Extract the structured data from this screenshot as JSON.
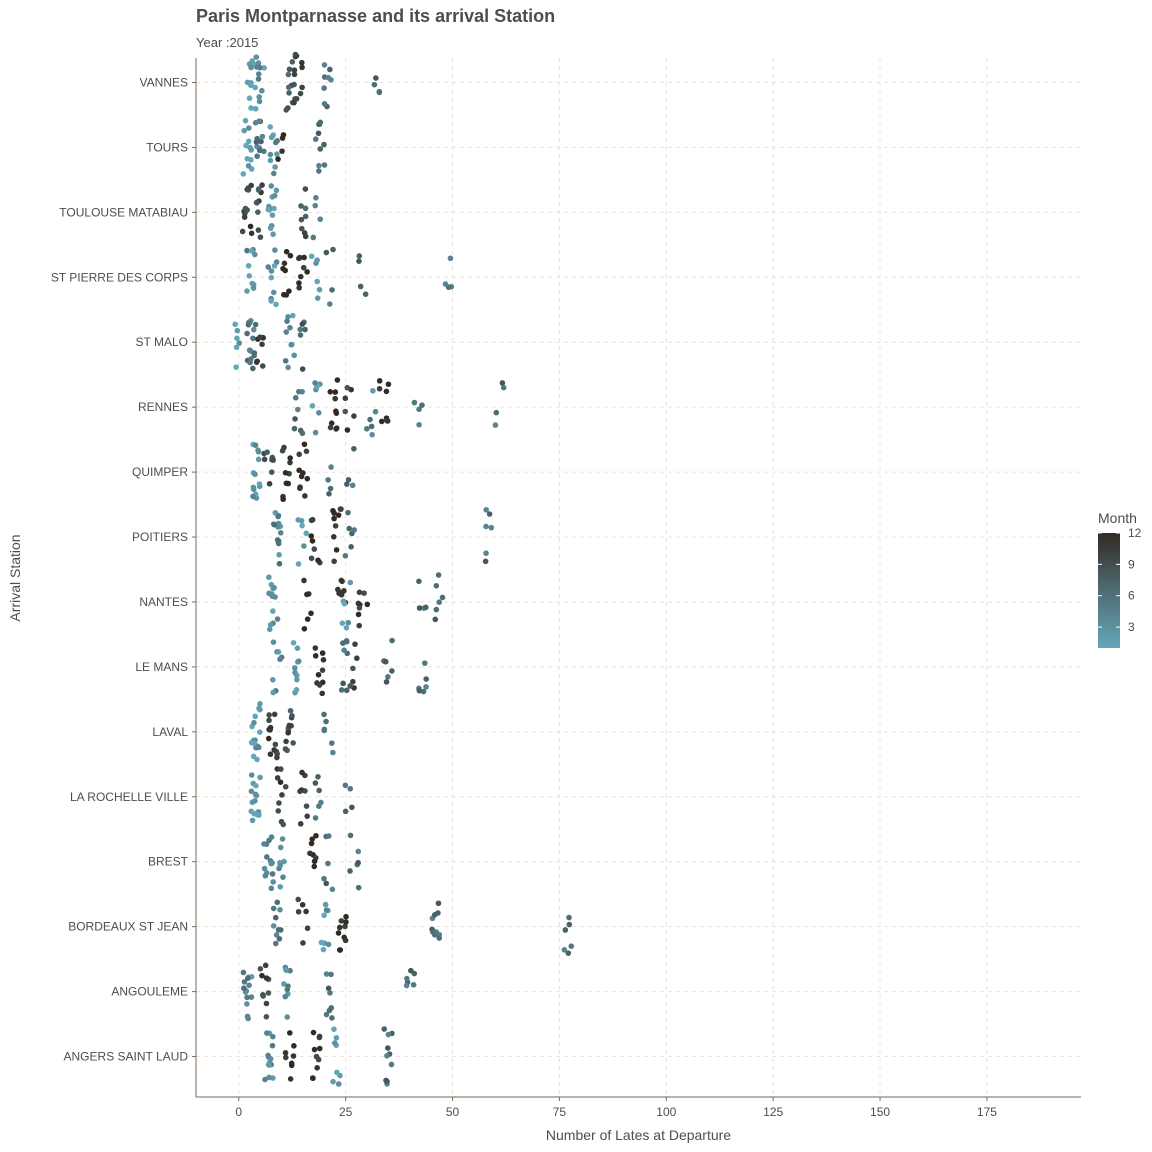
{
  "chart_data": {
    "type": "scatter",
    "title": "Paris Montparnasse and its arrival Station",
    "subtitle": "Year :2015",
    "xlabel": "Number of Lates at Departure",
    "ylabel": "Arrival Station",
    "xlim": [
      -10,
      197
    ],
    "x_ticks": [
      0,
      25,
      50,
      75,
      100,
      125,
      150,
      175
    ],
    "grid": true,
    "legend": {
      "title": "Month",
      "type": "colorbar",
      "ticks": [
        3,
        6,
        9,
        12
      ],
      "range": [
        1,
        12
      ],
      "low_color": "#64a6b9",
      "high_color": "#332a24",
      "placement": "right"
    },
    "categories": [
      "VANNES",
      "TOURS",
      "TOULOUSE MATABIAU",
      "ST PIERRE DES CORPS",
      "ST MALO",
      "RENNES",
      "QUIMPER",
      "POITIERS",
      "NANTES",
      "LE MANS",
      "LAVAL",
      "LA ROCHELLE VILLE",
      "BREST",
      "BORDEAUX ST JEAN",
      "ANGOULEME",
      "ANGERS SAINT LAUD"
    ],
    "series": [
      {
        "name": "VANNES",
        "clusters": [
          [
            3,
            1,
            12
          ],
          [
            5,
            3,
            10
          ],
          [
            12,
            8,
            10
          ],
          [
            14,
            10,
            12
          ],
          [
            21,
            6,
            8
          ],
          [
            32,
            6,
            4
          ]
        ]
      },
      {
        "name": "TOURS",
        "clusters": [
          [
            2,
            1,
            12
          ],
          [
            5,
            5,
            12
          ],
          [
            8,
            3,
            10
          ],
          [
            10,
            12,
            4
          ],
          [
            19,
            6,
            10
          ]
        ]
      },
      {
        "name": "TOULOUSE MATABIAU",
        "clusters": [
          [
            2,
            10,
            12
          ],
          [
            5,
            9,
            10
          ],
          [
            8,
            2,
            12
          ],
          [
            15,
            8,
            8
          ],
          [
            18,
            6,
            4
          ]
        ]
      },
      {
        "name": "ST PIERRE DES CORPS",
        "clusters": [
          [
            3,
            3,
            10
          ],
          [
            8,
            2,
            10
          ],
          [
            11,
            12,
            8
          ],
          [
            15,
            12,
            8
          ],
          [
            18,
            1,
            6
          ],
          [
            21,
            6,
            4
          ],
          [
            29,
            6,
            4
          ],
          [
            49,
            6,
            4
          ]
        ]
      },
      {
        "name": "ST MALO",
        "clusters": [
          [
            0,
            1,
            6
          ],
          [
            3,
            5,
            16
          ],
          [
            5,
            11,
            8
          ],
          [
            12,
            3,
            10
          ],
          [
            15,
            7,
            6
          ]
        ]
      },
      {
        "name": "RENNES",
        "clusters": [
          [
            14,
            6,
            8
          ],
          [
            18,
            2,
            8
          ],
          [
            22,
            12,
            10
          ],
          [
            26,
            10,
            6
          ],
          [
            31,
            4,
            6
          ],
          [
            34,
            12,
            8
          ],
          [
            42,
            6,
            4
          ],
          [
            61,
            6,
            4
          ]
        ]
      },
      {
        "name": "QUIMPER",
        "clusters": [
          [
            4,
            2,
            14
          ],
          [
            7,
            9,
            8
          ],
          [
            11,
            11,
            10
          ],
          [
            15,
            12,
            10
          ],
          [
            21,
            6,
            4
          ],
          [
            26,
            6,
            4
          ]
        ]
      },
      {
        "name": "POITIERS",
        "clusters": [
          [
            9,
            4,
            14
          ],
          [
            15,
            2,
            6
          ],
          [
            18,
            11,
            8
          ],
          [
            23,
            11,
            10
          ],
          [
            26,
            6,
            6
          ],
          [
            58,
            6,
            6
          ]
        ]
      },
      {
        "name": "NANTES",
        "clusters": [
          [
            8,
            3,
            14
          ],
          [
            16,
            12,
            6
          ],
          [
            24,
            11,
            8
          ],
          [
            25,
            2,
            6
          ],
          [
            29,
            11,
            8
          ],
          [
            43,
            6,
            4
          ],
          [
            47,
            6,
            6
          ]
        ]
      },
      {
        "name": "LE MANS",
        "clusters": [
          [
            9,
            4,
            8
          ],
          [
            13,
            2,
            10
          ],
          [
            19,
            12,
            10
          ],
          [
            25,
            6,
            8
          ],
          [
            27,
            10,
            6
          ],
          [
            35,
            6,
            6
          ],
          [
            43,
            6,
            6
          ]
        ]
      },
      {
        "name": "LAVAL",
        "clusters": [
          [
            4,
            2,
            16
          ],
          [
            8,
            10,
            14
          ],
          [
            12,
            9,
            12
          ],
          [
            21,
            6,
            6
          ]
        ]
      },
      {
        "name": "LA ROCHELLE VILLE",
        "clusters": [
          [
            4,
            2,
            16
          ],
          [
            10,
            10,
            10
          ],
          [
            15,
            11,
            8
          ],
          [
            19,
            6,
            6
          ],
          [
            26,
            6,
            4
          ]
        ]
      },
      {
        "name": "BREST",
        "clusters": [
          [
            7,
            4,
            14
          ],
          [
            10,
            2,
            8
          ],
          [
            17,
            12,
            8
          ],
          [
            21,
            6,
            6
          ],
          [
            27,
            6,
            6
          ]
        ]
      },
      {
        "name": "BORDEAUX ST JEAN",
        "clusters": [
          [
            9,
            5,
            10
          ],
          [
            15,
            10,
            6
          ],
          [
            20,
            2,
            8
          ],
          [
            24,
            12,
            10
          ],
          [
            46,
            6,
            10
          ],
          [
            77,
            6,
            6
          ]
        ]
      },
      {
        "name": "ANGOULEME",
        "clusters": [
          [
            2,
            4,
            14
          ],
          [
            6,
            10,
            10
          ],
          [
            11,
            3,
            10
          ],
          [
            21,
            6,
            8
          ],
          [
            40,
            6,
            6
          ]
        ]
      },
      {
        "name": "ANGERS SAINT LAUD",
        "clusters": [
          [
            7,
            3,
            14
          ],
          [
            12,
            12,
            8
          ],
          [
            18,
            11,
            10
          ],
          [
            23,
            2,
            8
          ],
          [
            35,
            6,
            10
          ]
        ]
      }
    ]
  }
}
